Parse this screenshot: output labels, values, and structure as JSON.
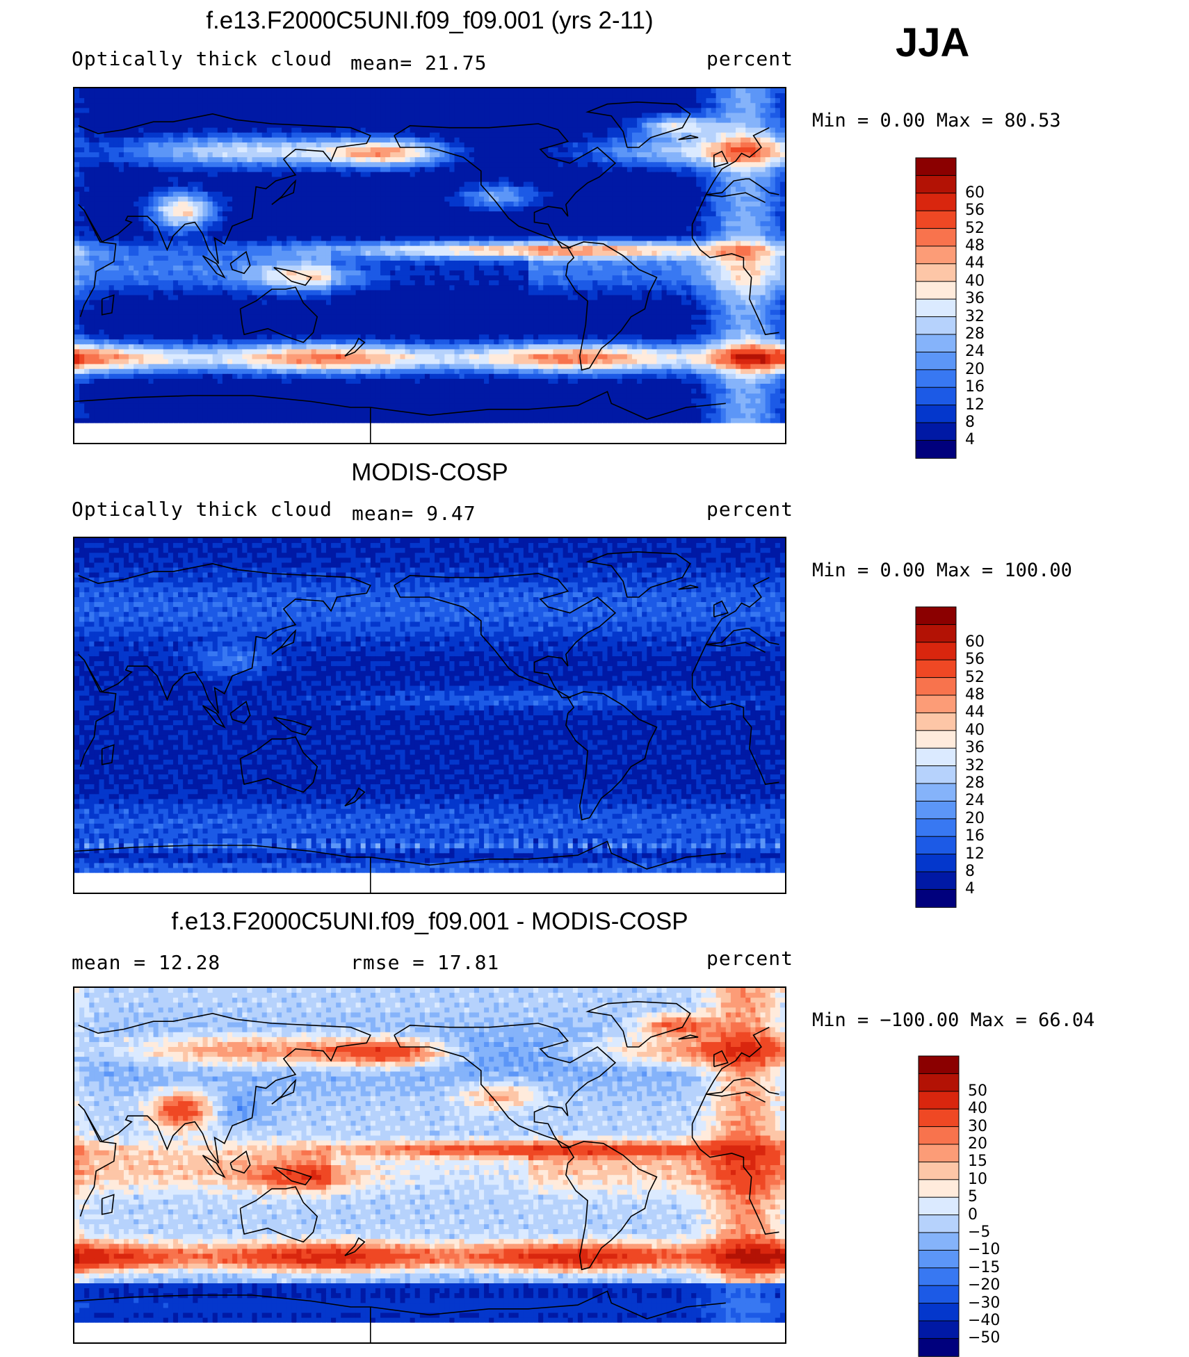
{
  "header": {
    "season": "JJA"
  },
  "panels": [
    {
      "id": "model",
      "title": "f.e13.F2000C5UNI.f09_f09.001 (yrs 2-11)",
      "variable": "Optically thick cloud",
      "stat1": "mean=   21.75",
      "stat2": "",
      "units": "percent",
      "minmax": "Min =    0.00 Max =   80.53",
      "map_field": "model",
      "colorbar": {
        "levels": [
          "4",
          "8",
          "12",
          "16",
          "20",
          "24",
          "28",
          "32",
          "36",
          "40",
          "44",
          "48",
          "52",
          "56",
          "60"
        ],
        "colors": [
          "#00007d",
          "#0019a5",
          "#0437cc",
          "#1c5ae6",
          "#3878f2",
          "#5c96f7",
          "#85b3fa",
          "#b6d2fc",
          "#dbeaff",
          "#ffebdc",
          "#fdc6a7",
          "#fc9c77",
          "#f8734d",
          "#ef4824",
          "#d9260e",
          "#b31205",
          "#8b0000"
        ]
      }
    },
    {
      "id": "obs",
      "title": "MODIS-COSP",
      "variable": "Optically thick cloud",
      "stat1": "mean=    9.47",
      "stat2": "",
      "units": "percent",
      "minmax": "Min =    0.00 Max =  100.00",
      "map_field": "obs",
      "colorbar": {
        "levels": [
          "4",
          "8",
          "12",
          "16",
          "20",
          "24",
          "28",
          "32",
          "36",
          "40",
          "44",
          "48",
          "52",
          "56",
          "60"
        ],
        "colors": [
          "#00007d",
          "#0019a5",
          "#0437cc",
          "#1c5ae6",
          "#3878f2",
          "#5c96f7",
          "#85b3fa",
          "#b6d2fc",
          "#dbeaff",
          "#ffebdc",
          "#fdc6a7",
          "#fc9c77",
          "#f8734d",
          "#ef4824",
          "#d9260e",
          "#b31205",
          "#8b0000"
        ]
      }
    },
    {
      "id": "diff",
      "title": "f.e13.F2000C5UNI.f09_f09.001 - MODIS-COSP",
      "variable": "",
      "stat1": "mean =    12.28",
      "stat2": "rmse =    17.81",
      "units": "percent",
      "minmax": "Min = −100.00 Max =   66.04",
      "map_field": "diff",
      "colorbar": {
        "levels": [
          "−50",
          "−40",
          "−30",
          "−20",
          "−15",
          "−10",
          "−5",
          "0",
          "5",
          "10",
          "15",
          "20",
          "30",
          "40",
          "50"
        ],
        "colors": [
          "#00007d",
          "#0019a5",
          "#0437cc",
          "#1c5ae6",
          "#3878f2",
          "#5c96f7",
          "#85b3fa",
          "#b6d2fc",
          "#dbeaff",
          "#ffebdc",
          "#fdc6a7",
          "#fc9c77",
          "#f8734d",
          "#ef4824",
          "#d9260e",
          "#b31205",
          "#8b0000"
        ]
      }
    }
  ]
}
